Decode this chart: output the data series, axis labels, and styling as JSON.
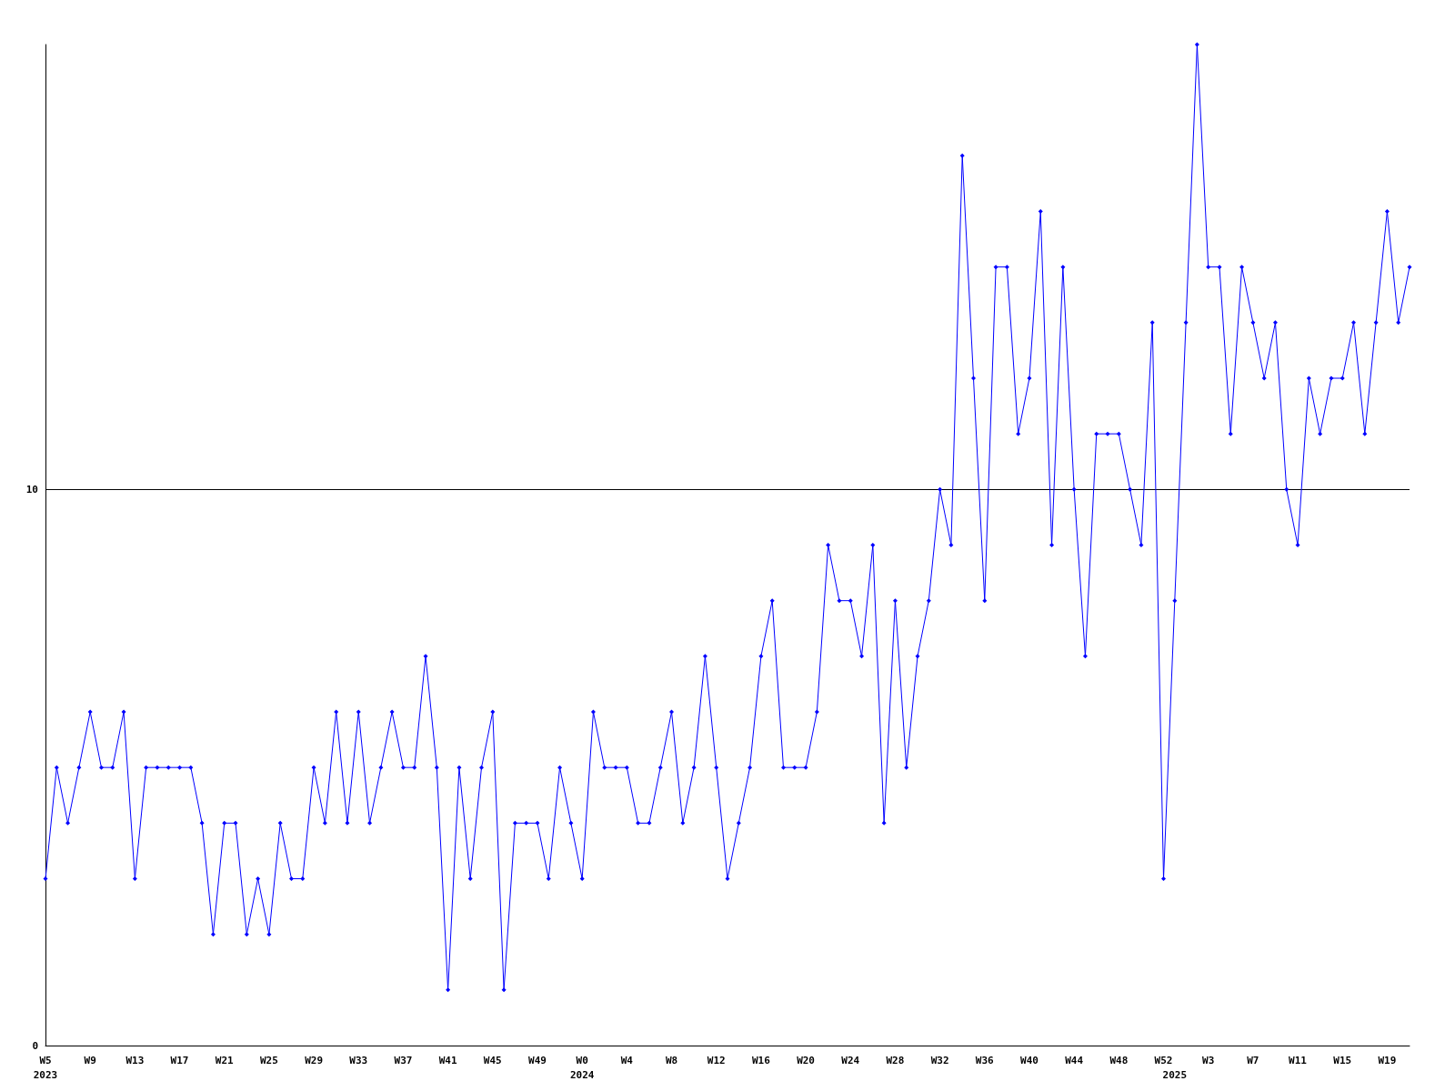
{
  "chart_data": {
    "type": "line",
    "color": "#0000ff",
    "marker": "diamond",
    "grid": "y",
    "ylim": [
      0,
      18
    ],
    "yticks": [
      0,
      10
    ],
    "categories": [
      "W5\n2023",
      null,
      null,
      null,
      "W9",
      null,
      null,
      null,
      "W13",
      null,
      null,
      null,
      "W17",
      null,
      null,
      null,
      "W21",
      null,
      null,
      null,
      "W25",
      null,
      null,
      null,
      "W29",
      null,
      null,
      null,
      "W33",
      null,
      null,
      null,
      "W37",
      null,
      null,
      null,
      "W41",
      null,
      null,
      null,
      "W45",
      null,
      null,
      null,
      "W49",
      null,
      null,
      null,
      "W0\n2024",
      null,
      null,
      null,
      "W4",
      null,
      null,
      null,
      "W8",
      null,
      null,
      null,
      "W12",
      null,
      null,
      null,
      "W16",
      null,
      null,
      null,
      "W20",
      null,
      null,
      null,
      "W24",
      null,
      null,
      null,
      "W28",
      null,
      null,
      null,
      "W32",
      null,
      null,
      null,
      "W36",
      null,
      null,
      null,
      "W40",
      null,
      null,
      null,
      "W44",
      null,
      null,
      null,
      "W48",
      null,
      null,
      null,
      "W52",
      "\n2025",
      null,
      null,
      "W3",
      null,
      null,
      null,
      "W7",
      null,
      null,
      null,
      "W11",
      null,
      null,
      null,
      "W15",
      null,
      null,
      null,
      "W19",
      null,
      null
    ],
    "values": [
      3,
      5,
      4,
      5,
      6,
      5,
      5,
      6,
      3,
      5,
      5,
      5,
      5,
      5,
      4,
      2,
      4,
      4,
      2,
      3,
      2,
      4,
      3,
      3,
      5,
      4,
      6,
      4,
      6,
      4,
      5,
      6,
      5,
      5,
      7,
      5,
      1,
      5,
      3,
      5,
      6,
      1,
      4,
      4,
      4,
      3,
      5,
      4,
      3,
      6,
      5,
      5,
      5,
      4,
      4,
      5,
      6,
      4,
      5,
      7,
      5,
      3,
      4,
      5,
      7,
      8,
      5,
      5,
      5,
      6,
      9,
      8,
      8,
      7,
      9,
      4,
      8,
      5,
      7,
      8,
      10,
      9,
      16,
      12,
      8,
      14,
      14,
      11,
      12,
      15,
      9,
      14,
      10,
      7,
      11,
      11,
      11,
      10,
      9,
      13,
      3,
      8,
      13,
      18,
      14,
      14,
      11,
      14,
      13,
      12,
      13,
      10,
      9,
      12,
      11,
      12,
      12,
      13,
      11,
      13,
      15,
      13,
      14
    ]
  }
}
